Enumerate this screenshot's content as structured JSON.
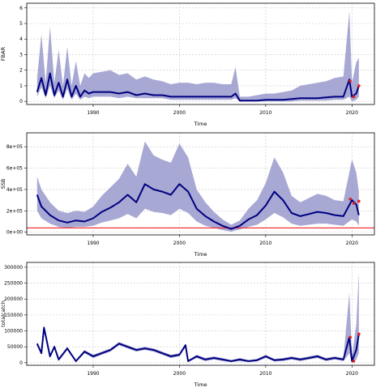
{
  "chart_data": [
    {
      "type": "line",
      "ylabel": "FBAR",
      "xlabel": "Time",
      "ylim": [
        -0.2,
        6.3
      ],
      "xlim": [
        1982.3,
        2022.6
      ],
      "yticks": [
        0,
        1,
        2,
        3,
        4,
        5,
        6
      ],
      "ytick_labels": [
        "0",
        "1",
        "2",
        "3",
        "4",
        "5",
        "6"
      ],
      "xticks": [
        1990,
        2000,
        2010,
        2020
      ],
      "xtick_labels": [
        "1990",
        "2000",
        "2010",
        "2020"
      ],
      "grid": true,
      "band_color": "#9999cc",
      "line_color": "#000080",
      "marker_color": "#dd2222",
      "series": [
        {
          "x": [
            1983.5,
            1984,
            1984.5,
            1985,
            1985.5,
            1986,
            1986.5,
            1987,
            1987.5,
            1988,
            1988.5,
            1989,
            1989.5,
            1990,
            1991,
            1992,
            1993,
            1994,
            1995,
            1996,
            1997,
            1998,
            1999,
            2000,
            2001,
            2002,
            2003,
            2004,
            2005,
            2006,
            2006.5,
            2007,
            2008,
            2009,
            2010,
            2011,
            2012,
            2013,
            2014,
            2015,
            2016,
            2017,
            2018,
            2019,
            2019.7,
            2020,
            2020.5,
            2020.8
          ],
          "y": [
            0.6,
            1.5,
            0.4,
            1.8,
            0.4,
            1.2,
            0.3,
            1.4,
            0.3,
            1.0,
            0.3,
            0.7,
            0.5,
            0.6,
            0.6,
            0.6,
            0.5,
            0.6,
            0.4,
            0.5,
            0.4,
            0.4,
            0.3,
            0.3,
            0.3,
            0.3,
            0.3,
            0.3,
            0.3,
            0.3,
            0.5,
            0.05,
            0.05,
            0.05,
            0.1,
            0.1,
            0.1,
            0.15,
            0.2,
            0.2,
            0.2,
            0.25,
            0.3,
            0.3,
            1.4,
            0.3,
            0.5,
            1.0
          ],
          "lo": [
            0.3,
            0.9,
            0.2,
            1.0,
            0.2,
            0.7,
            0.1,
            0.8,
            0.1,
            0.5,
            0.1,
            0.3,
            0.2,
            0.3,
            0.3,
            0.3,
            0.2,
            0.3,
            0.2,
            0.2,
            0.2,
            0.2,
            0.1,
            0.1,
            0.1,
            0.1,
            0.1,
            0.1,
            0.1,
            0.1,
            0.2,
            0.0,
            0.0,
            0.0,
            0.0,
            0.0,
            0.0,
            0.0,
            0.05,
            0.05,
            0.05,
            0.05,
            0.1,
            0.1,
            0.3,
            0.0,
            0.1,
            0.3
          ],
          "hi": [
            1.5,
            4.3,
            1.2,
            4.8,
            1.2,
            3.3,
            1.0,
            3.5,
            1.0,
            2.6,
            1.0,
            1.8,
            1.5,
            1.8,
            1.9,
            2.0,
            1.7,
            1.8,
            1.4,
            1.6,
            1.4,
            1.3,
            1.1,
            1.2,
            1.2,
            1.1,
            1.2,
            1.2,
            1.1,
            1.1,
            2.2,
            0.3,
            0.3,
            0.4,
            0.5,
            0.5,
            0.6,
            0.7,
            1.0,
            1.1,
            1.2,
            1.3,
            1.5,
            1.6,
            5.8,
            1.2,
            2.5,
            2.8
          ]
        }
      ],
      "markers": [
        {
          "x": 2019.8,
          "y": 1.3
        },
        {
          "x": 2020.2,
          "y": 0.3
        },
        {
          "x": 2020.8,
          "y": 1.0
        }
      ]
    },
    {
      "type": "line",
      "ylabel": "SSB",
      "xlabel": "Time",
      "ylim": [
        -25000,
        930000
      ],
      "xlim": [
        1982.3,
        2022.6
      ],
      "yticks": [
        0,
        200000,
        400000,
        600000,
        800000
      ],
      "ytick_labels": [
        "0e+00",
        "2e+05",
        "4e+05",
        "6e+05",
        "8e+05"
      ],
      "xticks": [
        1990,
        2000,
        2010,
        2020
      ],
      "xtick_labels": [
        "1990",
        "2000",
        "2010",
        "2020"
      ],
      "grid": true,
      "band_color": "#9999cc",
      "line_color": "#000080",
      "marker_color": "#dd2222",
      "hline": {
        "y": 40000,
        "color": "#ee2222"
      },
      "series": [
        {
          "x": [
            1983.5,
            1984,
            1985,
            1986,
            1987,
            1988,
            1989,
            1990,
            1991,
            1992,
            1993,
            1994,
            1995,
            1996,
            1997,
            1998,
            1999,
            2000,
            2001,
            2002,
            2003,
            2004,
            2005,
            2006,
            2007,
            2008,
            2009,
            2010,
            2011,
            2012,
            2013,
            2014,
            2015,
            2016,
            2017,
            2018,
            2019,
            2020,
            2020.5,
            2020.8
          ],
          "y": [
            350000,
            240000,
            160000,
            110000,
            90000,
            110000,
            100000,
            130000,
            190000,
            230000,
            280000,
            350000,
            280000,
            450000,
            400000,
            380000,
            350000,
            450000,
            380000,
            220000,
            150000,
            100000,
            60000,
            30000,
            60000,
            120000,
            160000,
            250000,
            380000,
            300000,
            180000,
            150000,
            170000,
            190000,
            180000,
            160000,
            150000,
            300000,
            260000,
            160000
          ],
          "lo": [
            200000,
            130000,
            80000,
            50000,
            40000,
            50000,
            50000,
            60000,
            90000,
            110000,
            130000,
            170000,
            130000,
            220000,
            190000,
            180000,
            160000,
            220000,
            180000,
            100000,
            60000,
            40000,
            20000,
            5000,
            25000,
            50000,
            70000,
            120000,
            180000,
            140000,
            80000,
            60000,
            70000,
            80000,
            80000,
            70000,
            60000,
            120000,
            100000,
            60000
          ],
          "hi": [
            520000,
            400000,
            280000,
            200000,
            180000,
            200000,
            190000,
            240000,
            340000,
            420000,
            500000,
            640000,
            520000,
            850000,
            720000,
            680000,
            650000,
            830000,
            700000,
            400000,
            280000,
            190000,
            120000,
            70000,
            110000,
            220000,
            300000,
            460000,
            700000,
            560000,
            340000,
            280000,
            320000,
            360000,
            340000,
            300000,
            290000,
            680000,
            560000,
            380000
          ]
        }
      ],
      "markers": [
        {
          "x": 2019.8,
          "y": 310000
        },
        {
          "x": 2020.2,
          "y": 270000
        },
        {
          "x": 2020.8,
          "y": 290000
        }
      ]
    },
    {
      "type": "line",
      "ylabel": "totalcatch",
      "xlabel": "Time",
      "ylim": [
        -8000,
        315000
      ],
      "xlim": [
        1982.3,
        2022.6
      ],
      "yticks": [
        0,
        50000,
        100000,
        150000,
        200000,
        250000,
        300000
      ],
      "ytick_labels": [
        "0",
        "50000",
        "100000",
        "150000",
        "200000",
        "250000",
        "300000"
      ],
      "xticks": [
        1990,
        2000,
        2010,
        2020
      ],
      "xtick_labels": [
        "1990",
        "2000",
        "2010",
        "2020"
      ],
      "grid": true,
      "band_color": "#9999cc",
      "line_color": "#000080",
      "marker_color": "#dd2222",
      "series": [
        {
          "x": [
            1983.5,
            1984,
            1984.3,
            1985,
            1985.5,
            1986,
            1987,
            1988,
            1989,
            1990,
            1991,
            1992,
            1993,
            1994,
            1995,
            1996,
            1997,
            1998,
            1999,
            2000,
            2000.7,
            2001,
            2002,
            2003,
            2004,
            2005,
            2006,
            2007,
            2008,
            2009,
            2010,
            2011,
            2012,
            2013,
            2014,
            2015,
            2016,
            2017,
            2018,
            2019,
            2019.7,
            2020,
            2020.5,
            2020.8
          ],
          "y": [
            60000,
            30000,
            110000,
            20000,
            50000,
            10000,
            45000,
            5000,
            35000,
            20000,
            30000,
            40000,
            60000,
            50000,
            40000,
            45000,
            40000,
            30000,
            20000,
            25000,
            55000,
            5000,
            20000,
            10000,
            15000,
            10000,
            5000,
            10000,
            5000,
            8000,
            20000,
            8000,
            10000,
            15000,
            10000,
            15000,
            20000,
            10000,
            15000,
            10000,
            80000,
            5000,
            40000,
            90000
          ],
          "lo": [
            55000,
            25000,
            100000,
            15000,
            45000,
            5000,
            40000,
            2000,
            30000,
            15000,
            25000,
            35000,
            55000,
            45000,
            35000,
            40000,
            35000,
            25000,
            15000,
            20000,
            50000,
            2000,
            15000,
            5000,
            10000,
            5000,
            2000,
            5000,
            2000,
            4000,
            15000,
            4000,
            5000,
            10000,
            5000,
            10000,
            15000,
            5000,
            10000,
            5000,
            30000,
            0,
            10000,
            30000
          ],
          "hi": [
            65000,
            35000,
            120000,
            25000,
            55000,
            15000,
            50000,
            8000,
            40000,
            25000,
            35000,
            45000,
            65000,
            55000,
            45000,
            50000,
            45000,
            35000,
            25000,
            30000,
            60000,
            8000,
            25000,
            15000,
            20000,
            15000,
            8000,
            15000,
            8000,
            12000,
            25000,
            12000,
            15000,
            20000,
            15000,
            20000,
            25000,
            15000,
            20000,
            15000,
            220000,
            20000,
            120000,
            285000
          ]
        }
      ],
      "markers": [
        {
          "x": 2019.8,
          "y": 80000
        },
        {
          "x": 2020.2,
          "y": 5000
        },
        {
          "x": 2020.8,
          "y": 90000
        }
      ]
    }
  ]
}
